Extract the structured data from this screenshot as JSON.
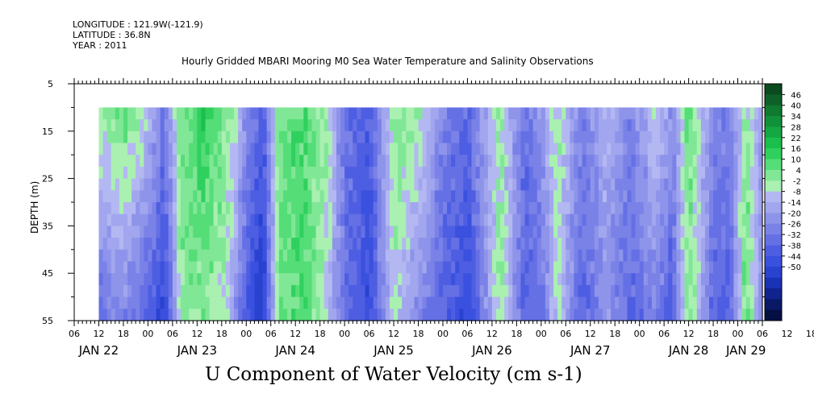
{
  "header": {
    "longitude": "LONGITUDE : 121.9W(-121.9)",
    "latitude": "LATITUDE : 36.8N",
    "year": "YEAR : 2011"
  },
  "chart_data": {
    "type": "heatmap",
    "subtitle": "Hourly Gridded MBARI Mooring M0 Sea Water Temperature and Salinity Observations",
    "title": "U Component of Water Velocity (cm s-1)",
    "ylabel": "DEPTH (m)",
    "xlabel": "",
    "ylim": [
      55,
      5
    ],
    "y_ticks": [
      5,
      15,
      25,
      35,
      45,
      55
    ],
    "data_depth_range": [
      10,
      55
    ],
    "x_range_hours": [
      6,
      174
    ],
    "data_start_hour": 12,
    "x_hour_ticks": [
      "06",
      "12",
      "18",
      "00",
      "06",
      "12",
      "18",
      "00",
      "06",
      "12",
      "18",
      "00",
      "06",
      "12",
      "18",
      "00",
      "06",
      "12",
      "18",
      "00",
      "06",
      "12",
      "18",
      "00",
      "06",
      "12",
      "18",
      "00",
      "06",
      "12",
      "18",
      "00",
      "06"
    ],
    "day_labels": [
      {
        "label": "JAN 22",
        "hour": 12
      },
      {
        "label": "JAN 23",
        "hour": 36
      },
      {
        "label": "JAN 24",
        "hour": 60
      },
      {
        "label": "JAN 25",
        "hour": 84
      },
      {
        "label": "JAN 26",
        "hour": 108
      },
      {
        "label": "JAN 27",
        "hour": 132
      },
      {
        "label": "JAN 28",
        "hour": 156
      },
      {
        "label": "JAN 29",
        "hour": 170
      }
    ],
    "colorbar_levels": [
      46,
      40,
      34,
      28,
      22,
      16,
      10,
      4,
      -2,
      -8,
      -14,
      -20,
      -26,
      -32,
      -38,
      -44,
      -50
    ],
    "colorbar_colors": [
      "#0a4a1e",
      "#0d6128",
      "#0f7a30",
      "#11913a",
      "#13a843",
      "#1bbf4d",
      "#30d05e",
      "#55dd78",
      "#80e796",
      "#a9f0b1",
      "#b4b8f2",
      "#a2a6ee",
      "#8e94ea",
      "#7a82e8",
      "#6570e5",
      "#4e5ee2",
      "#3a50de",
      "#2942cf",
      "#1a32b5",
      "#10238f",
      "#091966",
      "#040f44"
    ],
    "velocity_profile": [
      {
        "hour": 12,
        "surface": 10,
        "bottom": -15
      },
      {
        "hour": 18,
        "surface": 16,
        "bottom": -10
      },
      {
        "hour": 24,
        "surface": 6,
        "bottom": -20
      },
      {
        "hour": 28,
        "surface": -12,
        "bottom": -28
      },
      {
        "hour": 32,
        "surface": 14,
        "bottom": 10
      },
      {
        "hour": 38,
        "surface": 22,
        "bottom": 12
      },
      {
        "hour": 44,
        "surface": 12,
        "bottom": 2
      },
      {
        "hour": 48,
        "surface": -6,
        "bottom": -22
      },
      {
        "hour": 52,
        "surface": -20,
        "bottom": -34
      },
      {
        "hour": 56,
        "surface": 14,
        "bottom": 16
      },
      {
        "hour": 62,
        "surface": 18,
        "bottom": 18
      },
      {
        "hour": 68,
        "surface": 8,
        "bottom": 4
      },
      {
        "hour": 72,
        "surface": -12,
        "bottom": -16
      },
      {
        "hour": 78,
        "surface": -20,
        "bottom": -26
      },
      {
        "hour": 84,
        "surface": 12,
        "bottom": 6
      },
      {
        "hour": 90,
        "surface": 10,
        "bottom": -8
      },
      {
        "hour": 96,
        "surface": -10,
        "bottom": -18
      },
      {
        "hour": 102,
        "surface": -16,
        "bottom": -26
      },
      {
        "hour": 106,
        "surface": -4,
        "bottom": -10
      },
      {
        "hour": 110,
        "surface": 10,
        "bottom": 12
      },
      {
        "hour": 116,
        "surface": -14,
        "bottom": -20
      },
      {
        "hour": 120,
        "surface": -6,
        "bottom": -14
      },
      {
        "hour": 124,
        "surface": 10,
        "bottom": 6
      },
      {
        "hour": 130,
        "surface": -10,
        "bottom": -20
      },
      {
        "hour": 136,
        "surface": 2,
        "bottom": -6
      },
      {
        "hour": 142,
        "surface": -10,
        "bottom": -18
      },
      {
        "hour": 148,
        "surface": 6,
        "bottom": -10
      },
      {
        "hour": 152,
        "surface": -6,
        "bottom": -22
      },
      {
        "hour": 156,
        "surface": 16,
        "bottom": 14
      },
      {
        "hour": 162,
        "surface": -8,
        "bottom": -18
      },
      {
        "hour": 166,
        "surface": -12,
        "bottom": -20
      },
      {
        "hour": 170,
        "surface": 10,
        "bottom": 18
      },
      {
        "hour": 174,
        "surface": -4,
        "bottom": -8
      }
    ]
  }
}
